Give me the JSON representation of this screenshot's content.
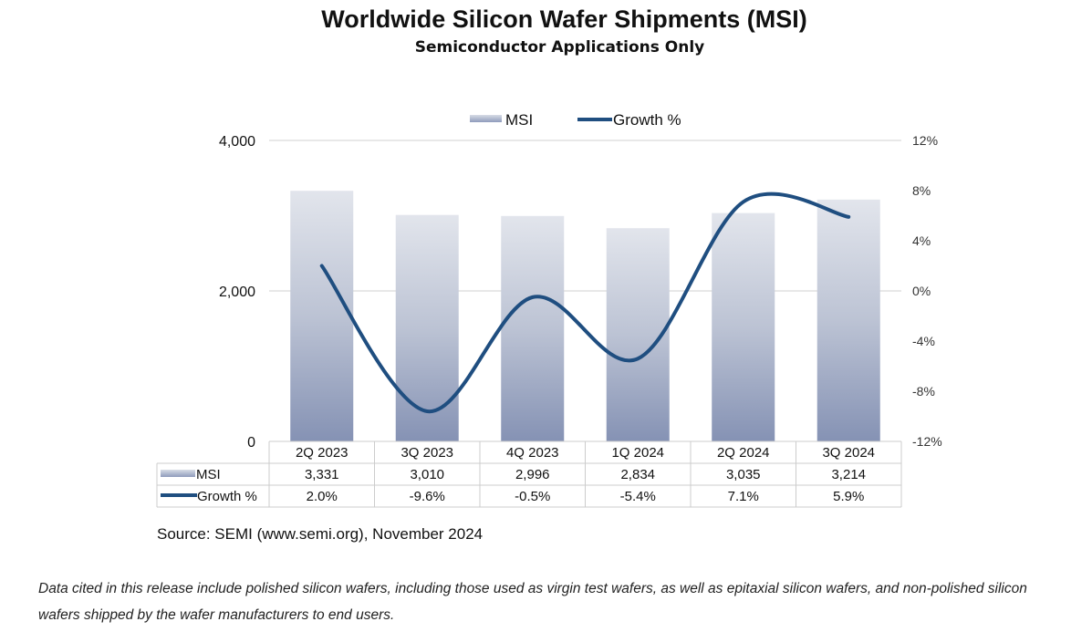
{
  "chart_data": {
    "type": "bar+line",
    "title": "Worldwide Silicon Wafer Shipments (MSI)",
    "subtitle": "Semiconductor Applications Only",
    "categories": [
      "2Q 2023",
      "3Q 2023",
      "4Q 2023",
      "1Q 2024",
      "2Q 2024",
      "3Q 2024"
    ],
    "series": [
      {
        "name": "MSI",
        "type": "bar",
        "axis": "left",
        "values": [
          3331,
          3010,
          2996,
          2834,
          3035,
          3214
        ],
        "labels": [
          "3,331",
          "3,010",
          "2,996",
          "2,834",
          "3,035",
          "3,214"
        ],
        "color": "#8e9bbb"
      },
      {
        "name": "Growth %",
        "type": "line",
        "axis": "right",
        "values": [
          2.0,
          -9.6,
          -0.5,
          -5.4,
          7.1,
          5.9
        ],
        "labels": [
          "2.0%",
          "-9.6%",
          "-0.5%",
          "-5.4%",
          "7.1%",
          "5.9%"
        ],
        "color": "#1f4e80"
      }
    ],
    "left_axis": {
      "ylim": [
        0,
        4000
      ],
      "ticks": [
        "0",
        "2,000",
        "4,000"
      ]
    },
    "right_axis": {
      "ylim": [
        -12,
        12
      ],
      "ticks": [
        "-12%",
        "-8%",
        "-4%",
        "0%",
        "4%",
        "8%",
        "12%"
      ]
    },
    "legend": "top-center",
    "grid": true,
    "data_table": true
  },
  "source": "Source: SEMI (www.semi.org), November 2024",
  "note": "Data cited in this release include polished silicon wafers, including those used as virgin test wafers, as well as epitaxial silicon wafers, and non-polished silicon wafers shipped by the wafer manufacturers to end users."
}
